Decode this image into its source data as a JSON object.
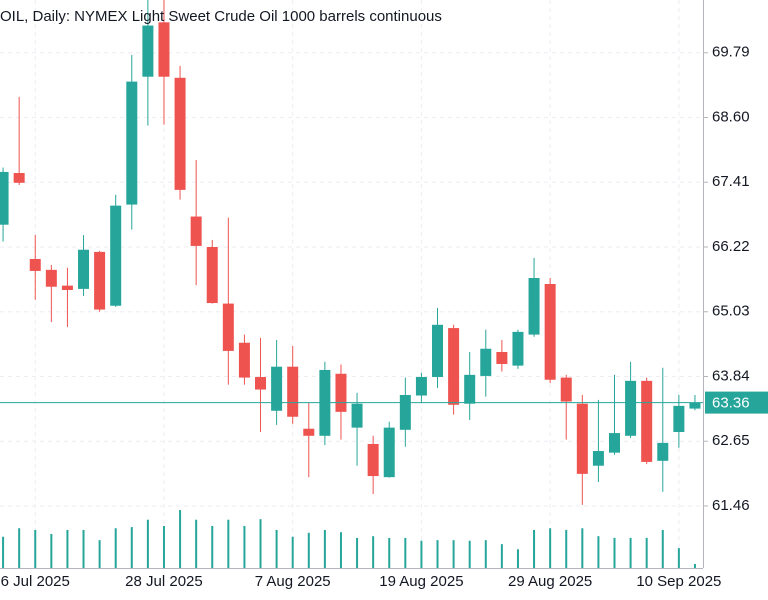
{
  "chart_data": {
    "type": "candlestick",
    "title": "OIL, Daily:  NYMEX Light Sweet Crude Oil 1000 barrels continuous",
    "categories": [
      null,
      null,
      "6 Jul 2025",
      null,
      null,
      null,
      null,
      null,
      null,
      null,
      "28 Jul 2025",
      null,
      null,
      null,
      null,
      null,
      null,
      null,
      "7 Aug 2025",
      null,
      null,
      null,
      null,
      null,
      null,
      null,
      "19 Aug 2025",
      null,
      null,
      null,
      null,
      null,
      null,
      null,
      "29 Aug 2025",
      null,
      null,
      null,
      null,
      null,
      null,
      null,
      "10 Sep 2025",
      null
    ],
    "open": [
      66.63,
      67.58,
      66.0,
      65.8,
      65.51,
      65.45,
      66.13,
      65.14,
      67.0,
      69.35,
      70.35,
      69.33,
      66.78,
      66.22,
      65.18,
      64.46,
      63.83,
      63.21,
      64.02,
      62.88,
      62.75,
      63.89,
      62.9,
      62.6,
      61.99,
      62.86,
      63.49,
      63.83,
      64.73,
      63.34,
      63.85,
      64.29,
      64.04,
      64.61,
      65.54,
      63.82,
      63.34,
      62.2,
      62.44,
      62.75,
      63.76,
      62.29,
      62.82,
      63.25
    ],
    "high": [
      67.68,
      68.98,
      66.44,
      65.89,
      65.84,
      66.44,
      66.15,
      67.18,
      69.75,
      70.85,
      70.9,
      69.55,
      67.82,
      66.35,
      66.76,
      64.61,
      64.55,
      64.51,
      64.4,
      63.36,
      64.11,
      64.06,
      63.54,
      62.75,
      63.01,
      63.82,
      63.91,
      65.1,
      64.79,
      64.29,
      64.7,
      64.51,
      64.7,
      66.02,
      65.65,
      63.87,
      63.5,
      63.41,
      63.87,
      64.11,
      63.82,
      64.0,
      63.5,
      63.5
    ],
    "low": [
      66.32,
      67.36,
      65.25,
      64.84,
      64.75,
      65.32,
      65.03,
      65.12,
      66.54,
      68.45,
      68.47,
      67.09,
      65.52,
      65.18,
      63.69,
      63.69,
      62.82,
      62.95,
      62.97,
      61.99,
      62.58,
      62.68,
      62.2,
      61.68,
      61.98,
      62.55,
      63.36,
      63.63,
      63.14,
      63.04,
      63.47,
      63.93,
      63.98,
      64.57,
      63.72,
      62.68,
      61.48,
      61.9,
      62.4,
      62.71,
      62.23,
      61.72,
      62.53,
      63.22
    ],
    "close": [
      67.6,
      67.4,
      65.78,
      65.49,
      65.43,
      66.17,
      65.07,
      66.98,
      69.26,
      70.29,
      69.35,
      67.27,
      66.24,
      65.19,
      64.31,
      63.82,
      63.6,
      64.02,
      63.1,
      62.75,
      63.96,
      63.19,
      63.34,
      62.01,
      62.9,
      63.5,
      63.83,
      64.79,
      63.32,
      63.87,
      64.35,
      64.07,
      64.66,
      65.65,
      63.78,
      63.38,
      62.05,
      62.47,
      62.8,
      63.76,
      62.27,
      62.62,
      63.3,
      63.36
    ],
    "volume": [
      5.5,
      7.0,
      6.7,
      6.0,
      6.7,
      6.7,
      4.9,
      7.0,
      7.2,
      8.5,
      7.4,
      10.2,
      8.5,
      7.4,
      8.5,
      7.4,
      8.6,
      6.7,
      5.5,
      6.2,
      6.7,
      6.3,
      5.3,
      5.6,
      5.3,
      5.3,
      4.8,
      4.9,
      4.9,
      4.8,
      4.9,
      4.2,
      3.3,
      6.7,
      7.0,
      6.7,
      7.0,
      5.6,
      5.3,
      5.3,
      5.3,
      6.7,
      3.5,
      0.7
    ],
    "up_color": "#26a69a",
    "down_color": "#ef5350",
    "volume_color": "#26a69a",
    "ylim": [
      60.32,
      70.76
    ],
    "yticks": [
      61.46,
      62.65,
      63.84,
      65.03,
      66.22,
      67.41,
      {
        "value": 68.6,
        "label": "68.60"
      },
      69.79
    ],
    "y2lim": [
      0,
      100
    ],
    "last_price": 63.36,
    "grid": true
  }
}
